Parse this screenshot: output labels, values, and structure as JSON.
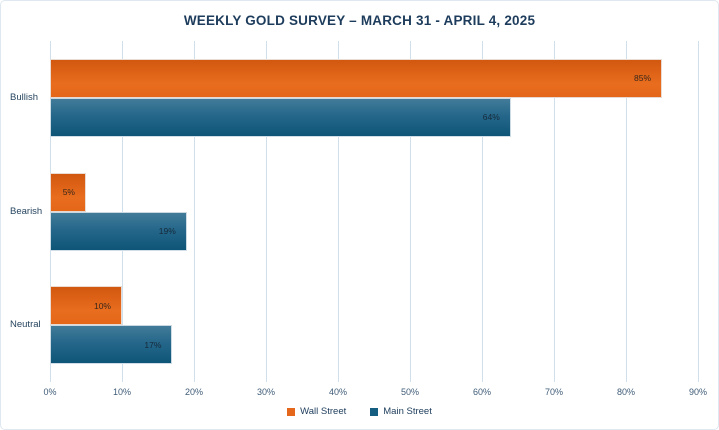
{
  "chart_data": {
    "type": "bar",
    "orientation": "horizontal",
    "title": "WEEKLY GOLD SURVEY – MARCH 31 - APRIL 4, 2025",
    "categories": [
      "Bullish",
      "Bearish",
      "Neutral"
    ],
    "series": [
      {
        "name": "Wall Street",
        "color": "#e4671c",
        "values": [
          85,
          5,
          10
        ],
        "labels": [
          "85%",
          "5%",
          "10%"
        ]
      },
      {
        "name": "Main Street",
        "color": "#155e81",
        "values": [
          64,
          19,
          17
        ],
        "labels": [
          "64%",
          "19%",
          "17%"
        ]
      }
    ],
    "value_suffix": "%",
    "xlim": [
      0,
      90
    ],
    "x_ticks": [
      "0%",
      "10%",
      "20%",
      "30%",
      "40%",
      "50%",
      "60%",
      "70%",
      "80%",
      "90%"
    ],
    "grid": true,
    "legend_position": "bottom"
  },
  "colors": {
    "wall_street_bar": "#e4671c",
    "main_street_bar": "#155e81",
    "gridline": "#cfe0ec",
    "title_text": "#1d3c5c",
    "axis_text": "#3f5c77"
  }
}
